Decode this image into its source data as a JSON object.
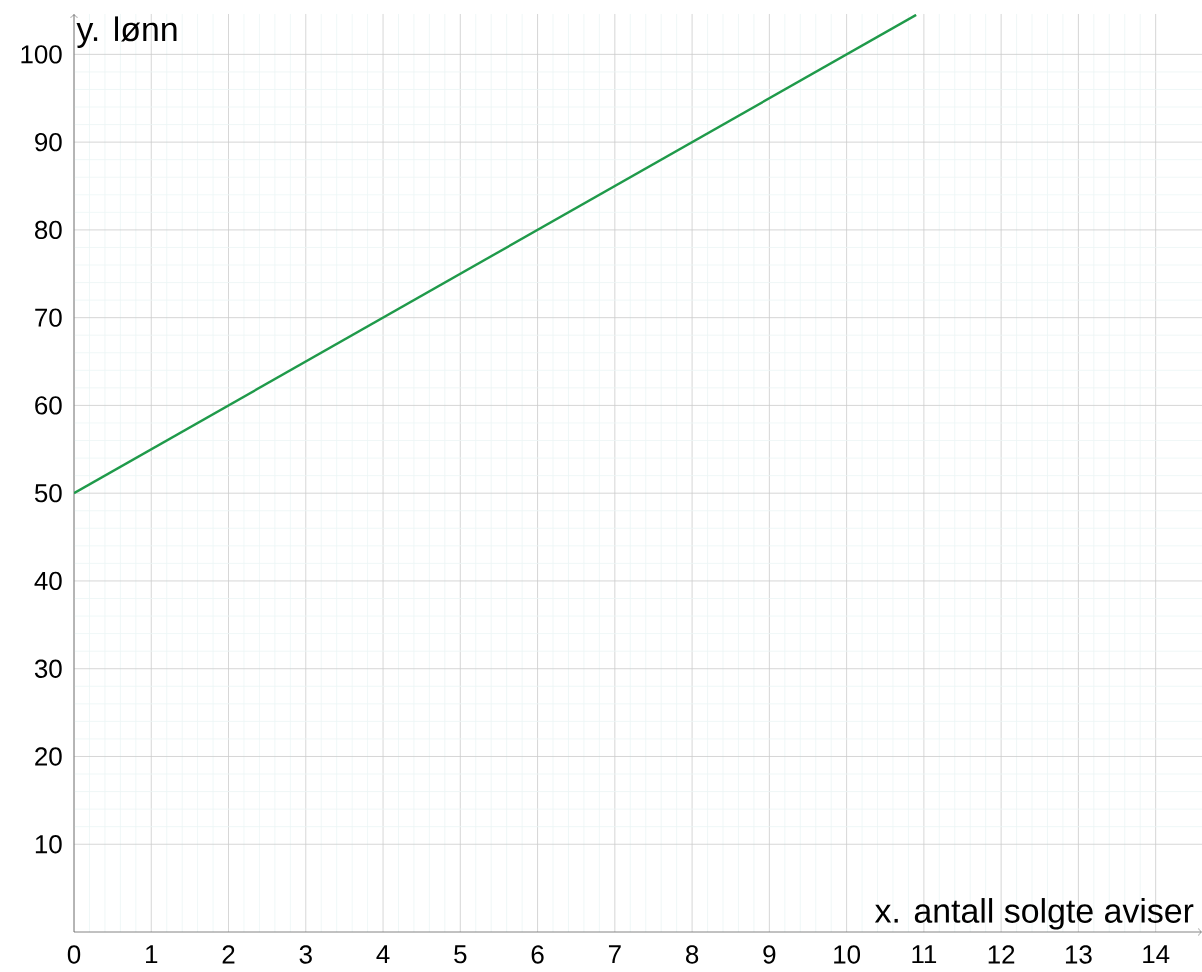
{
  "chart_data": {
    "type": "line",
    "xlabel": "x. antall solgte aviser",
    "ylabel": "y. lønn",
    "x": [
      0,
      10.9
    ],
    "series": [
      {
        "color": "#1f9a4a",
        "values": [
          50,
          104.5
        ]
      }
    ],
    "xlim": [
      0,
      14.6
    ],
    "ylim": [
      0,
      104.6
    ],
    "xticks": [
      0,
      1,
      2,
      3,
      4,
      5,
      6,
      7,
      8,
      9,
      10,
      11,
      12,
      13,
      14
    ],
    "yticks": [
      10,
      20,
      30,
      40,
      50,
      60,
      70,
      80,
      90,
      100
    ],
    "grid": true,
    "marker": "none",
    "line_style": "solid"
  }
}
